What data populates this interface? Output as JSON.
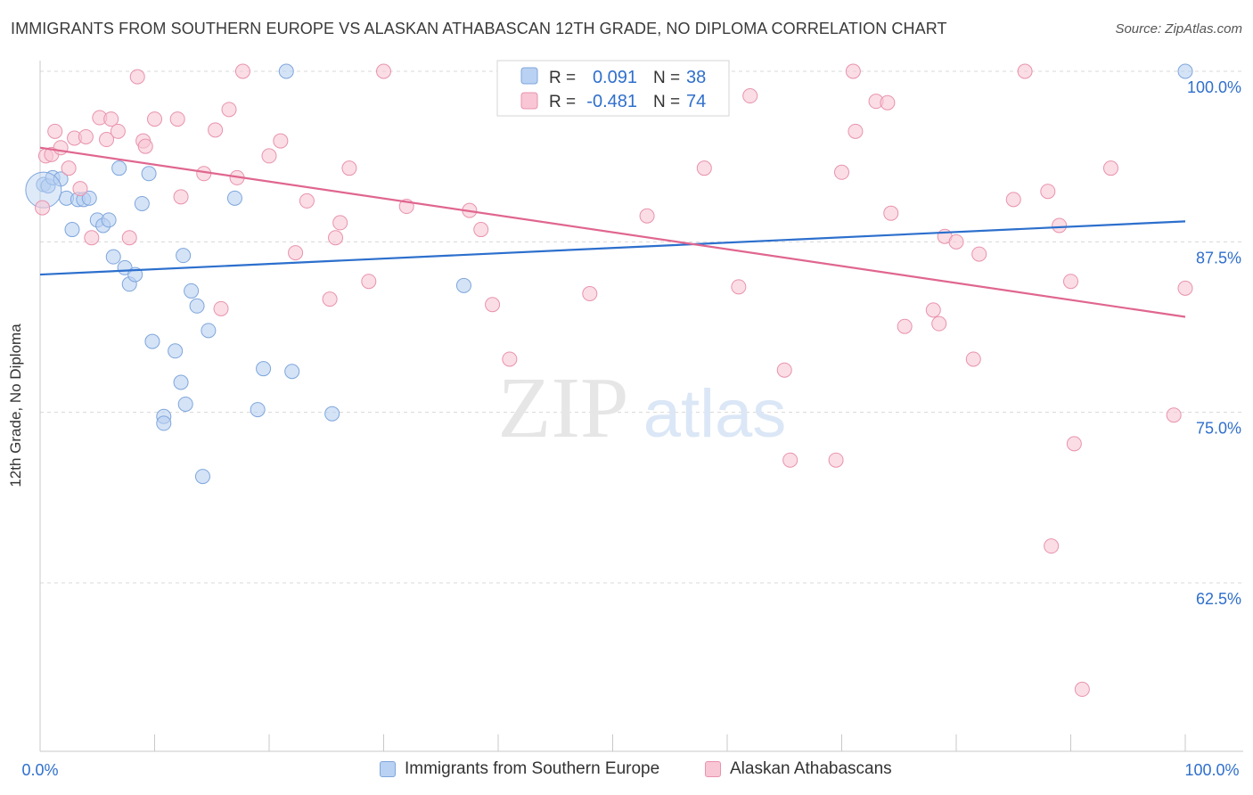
{
  "header": {
    "title": "IMMIGRANTS FROM SOUTHERN EUROPE VS ALASKAN ATHABASCAN 12TH GRADE, NO DIPLOMA CORRELATION CHART",
    "source": "Source: ZipAtlas.com"
  },
  "watermark": {
    "zip": "ZIP",
    "atlas": "atlas"
  },
  "colors": {
    "blue_fill": "#b9d1f2",
    "blue_stroke": "#7ea6dc",
    "blue_line": "#2c6fcd",
    "pink_fill": "#f8c6d4",
    "pink_stroke": "#e893ad",
    "pink_line": "#e0668f",
    "value_text": "#2f6fcc",
    "grid": "#d8d8d8"
  },
  "stats_legend": {
    "rows": [
      {
        "r_label": "R =",
        "r_value": "0.091",
        "n_label": "N =",
        "n_value": "38"
      },
      {
        "r_label": "R =",
        "r_value": "-0.481",
        "n_label": "N =",
        "n_value": "74"
      }
    ]
  },
  "chart_data": {
    "type": "scatter",
    "xlabel": "",
    "ylabel": "12th Grade, No Diploma",
    "xlim": [
      0,
      100
    ],
    "ylim": [
      50,
      101
    ],
    "x_tick_labels": [
      "0.0%",
      "100.0%"
    ],
    "y_ticks": [
      62.5,
      75.0,
      87.5,
      100.0
    ],
    "y_tick_labels": [
      "62.5%",
      "75.0%",
      "87.5%",
      "100.0%"
    ],
    "grid": "horizontal-dashed",
    "legend_position": "top-center",
    "series": [
      {
        "name": "Immigrants from Southern Europe",
        "color": "blue",
        "r": 0.091,
        "n": 38,
        "trend": {
          "x": [
            0,
            100
          ],
          "y": [
            85.1,
            89.0
          ]
        },
        "points": [
          {
            "x": 0.3,
            "y": 91.7
          },
          {
            "x": 0.7,
            "y": 91.6
          },
          {
            "x": 1.1,
            "y": 92.2
          },
          {
            "x": 1.8,
            "y": 92.1
          },
          {
            "x": 2.3,
            "y": 90.7
          },
          {
            "x": 2.8,
            "y": 88.4
          },
          {
            "x": 3.3,
            "y": 90.6
          },
          {
            "x": 3.8,
            "y": 90.6
          },
          {
            "x": 4.3,
            "y": 90.7
          },
          {
            "x": 5.0,
            "y": 89.1
          },
          {
            "x": 5.5,
            "y": 88.7
          },
          {
            "x": 6.0,
            "y": 89.1
          },
          {
            "x": 6.4,
            "y": 86.4
          },
          {
            "x": 6.9,
            "y": 92.9
          },
          {
            "x": 7.4,
            "y": 85.6
          },
          {
            "x": 7.8,
            "y": 84.4
          },
          {
            "x": 8.3,
            "y": 85.1
          },
          {
            "x": 8.9,
            "y": 90.3
          },
          {
            "x": 9.5,
            "y": 92.5
          },
          {
            "x": 9.8,
            "y": 80.2
          },
          {
            "x": 10.8,
            "y": 74.7
          },
          {
            "x": 10.8,
            "y": 74.2
          },
          {
            "x": 11.8,
            "y": 79.5
          },
          {
            "x": 12.3,
            "y": 77.2
          },
          {
            "x": 12.5,
            "y": 86.5
          },
          {
            "x": 12.7,
            "y": 75.6
          },
          {
            "x": 13.2,
            "y": 83.9
          },
          {
            "x": 13.7,
            "y": 82.8
          },
          {
            "x": 14.2,
            "y": 70.3
          },
          {
            "x": 14.7,
            "y": 81.0
          },
          {
            "x": 17.0,
            "y": 90.7
          },
          {
            "x": 19.0,
            "y": 75.2
          },
          {
            "x": 19.5,
            "y": 78.2
          },
          {
            "x": 21.5,
            "y": 100.0
          },
          {
            "x": 22.0,
            "y": 78.0
          },
          {
            "x": 25.5,
            "y": 74.9
          },
          {
            "x": 37.0,
            "y": 84.3
          },
          {
            "x": 100.0,
            "y": 100.0
          }
        ]
      },
      {
        "name": "Alaskan Athabascans",
        "color": "pink",
        "r": -0.481,
        "n": 74,
        "trend": {
          "x": [
            0,
            100
          ],
          "y": [
            94.4,
            82.0
          ]
        },
        "points": [
          {
            "x": 0.2,
            "y": 90.0
          },
          {
            "x": 0.5,
            "y": 93.8
          },
          {
            "x": 1.0,
            "y": 93.9
          },
          {
            "x": 1.3,
            "y": 95.6
          },
          {
            "x": 1.8,
            "y": 94.4
          },
          {
            "x": 2.5,
            "y": 92.9
          },
          {
            "x": 3.0,
            "y": 95.1
          },
          {
            "x": 3.5,
            "y": 91.4
          },
          {
            "x": 4.0,
            "y": 95.2
          },
          {
            "x": 4.5,
            "y": 87.8
          },
          {
            "x": 5.2,
            "y": 96.6
          },
          {
            "x": 5.8,
            "y": 95.0
          },
          {
            "x": 6.2,
            "y": 96.5
          },
          {
            "x": 6.8,
            "y": 95.6
          },
          {
            "x": 7.8,
            "y": 87.8
          },
          {
            "x": 8.5,
            "y": 99.6
          },
          {
            "x": 9.0,
            "y": 94.9
          },
          {
            "x": 9.2,
            "y": 94.5
          },
          {
            "x": 10.0,
            "y": 96.5
          },
          {
            "x": 12.0,
            "y": 96.5
          },
          {
            "x": 12.3,
            "y": 90.8
          },
          {
            "x": 14.3,
            "y": 92.5
          },
          {
            "x": 15.3,
            "y": 95.7
          },
          {
            "x": 15.8,
            "y": 82.6
          },
          {
            "x": 16.5,
            "y": 97.2
          },
          {
            "x": 17.2,
            "y": 92.2
          },
          {
            "x": 17.7,
            "y": 100.0
          },
          {
            "x": 20.0,
            "y": 93.8
          },
          {
            "x": 21.0,
            "y": 94.9
          },
          {
            "x": 22.3,
            "y": 86.7
          },
          {
            "x": 23.3,
            "y": 90.5
          },
          {
            "x": 25.3,
            "y": 83.3
          },
          {
            "x": 25.8,
            "y": 87.8
          },
          {
            "x": 26.2,
            "y": 88.9
          },
          {
            "x": 27.0,
            "y": 92.9
          },
          {
            "x": 28.7,
            "y": 84.6
          },
          {
            "x": 30.0,
            "y": 100.0
          },
          {
            "x": 32.0,
            "y": 90.1
          },
          {
            "x": 37.5,
            "y": 89.8
          },
          {
            "x": 38.5,
            "y": 88.4
          },
          {
            "x": 39.5,
            "y": 82.9
          },
          {
            "x": 41.0,
            "y": 78.9
          },
          {
            "x": 48.0,
            "y": 83.7
          },
          {
            "x": 53.0,
            "y": 89.4
          },
          {
            "x": 58.0,
            "y": 92.9
          },
          {
            "x": 61.0,
            "y": 84.2
          },
          {
            "x": 62.0,
            "y": 98.2
          },
          {
            "x": 65.0,
            "y": 78.1
          },
          {
            "x": 65.5,
            "y": 71.5
          },
          {
            "x": 69.5,
            "y": 71.5
          },
          {
            "x": 70.0,
            "y": 92.6
          },
          {
            "x": 71.0,
            "y": 100.0
          },
          {
            "x": 71.2,
            "y": 95.6
          },
          {
            "x": 73.0,
            "y": 97.8
          },
          {
            "x": 74.0,
            "y": 97.7
          },
          {
            "x": 74.3,
            "y": 89.6
          },
          {
            "x": 75.5,
            "y": 81.3
          },
          {
            "x": 78.0,
            "y": 82.5
          },
          {
            "x": 78.5,
            "y": 81.5
          },
          {
            "x": 79.0,
            "y": 87.9
          },
          {
            "x": 80.0,
            "y": 87.5
          },
          {
            "x": 81.5,
            "y": 78.9
          },
          {
            "x": 82.0,
            "y": 86.6
          },
          {
            "x": 85.0,
            "y": 90.6
          },
          {
            "x": 86.0,
            "y": 100.0
          },
          {
            "x": 88.0,
            "y": 91.2
          },
          {
            "x": 88.3,
            "y": 65.2
          },
          {
            "x": 89.0,
            "y": 88.7
          },
          {
            "x": 90.0,
            "y": 84.6
          },
          {
            "x": 90.3,
            "y": 72.7
          },
          {
            "x": 91.0,
            "y": 54.7
          },
          {
            "x": 93.5,
            "y": 92.9
          },
          {
            "x": 99.0,
            "y": 74.8
          },
          {
            "x": 100.0,
            "y": 84.1
          }
        ]
      }
    ]
  }
}
